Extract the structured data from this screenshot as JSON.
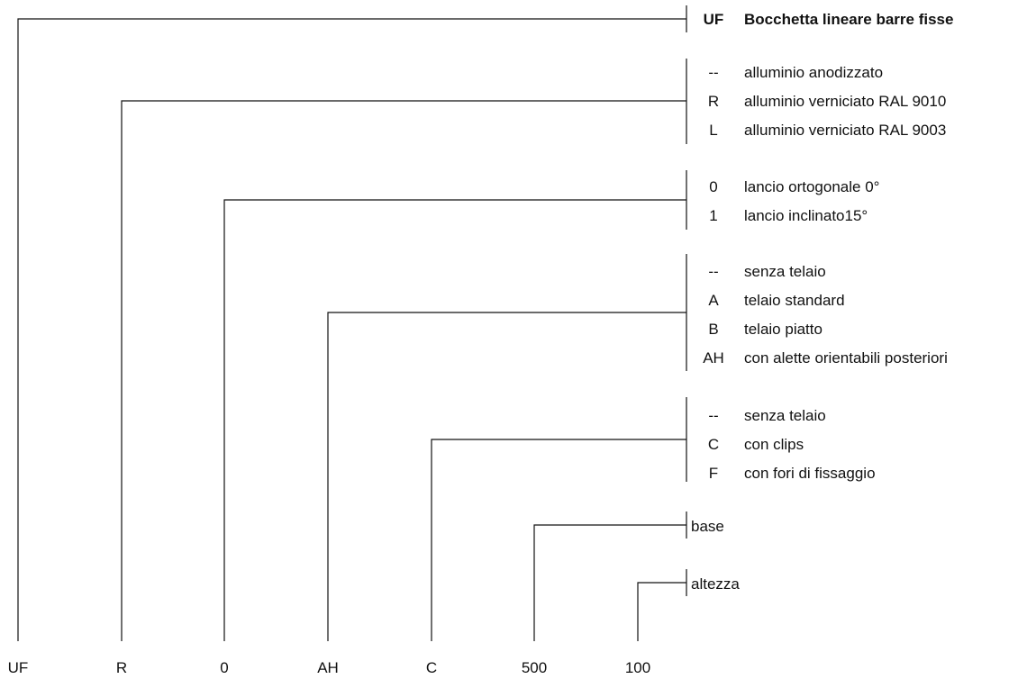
{
  "bottom_codes": [
    "UF",
    "R",
    "0",
    "AH",
    "C",
    "500",
    "100"
  ],
  "groups": [
    {
      "options": [
        {
          "code": "UF",
          "text": "Bocchetta lineare barre fisse"
        }
      ]
    },
    {
      "options": [
        {
          "code": "--",
          "text": "alluminio anodizzato"
        },
        {
          "code": "R",
          "text": "alluminio verniciato RAL 9010"
        },
        {
          "code": "L",
          "text": "alluminio verniciato RAL 9003"
        }
      ]
    },
    {
      "options": [
        {
          "code": "0",
          "text": "lancio ortogonale 0°"
        },
        {
          "code": "1",
          "text": "lancio inclinato15°"
        }
      ]
    },
    {
      "options": [
        {
          "code": "--",
          "text": "senza telaio"
        },
        {
          "code": "A",
          "text": "telaio standard"
        },
        {
          "code": "B",
          "text": "telaio piatto"
        },
        {
          "code": "AH",
          "text": "con alette orientabili posteriori"
        }
      ]
    },
    {
      "options": [
        {
          "code": "--",
          "text": "senza telaio"
        },
        {
          "code": "C",
          "text": "con clips"
        },
        {
          "code": "F",
          "text": "con fori di fissaggio"
        }
      ]
    },
    {
      "options": [
        {
          "code": "",
          "text": "base"
        }
      ]
    },
    {
      "options": [
        {
          "code": "",
          "text": "altezza"
        }
      ]
    }
  ]
}
